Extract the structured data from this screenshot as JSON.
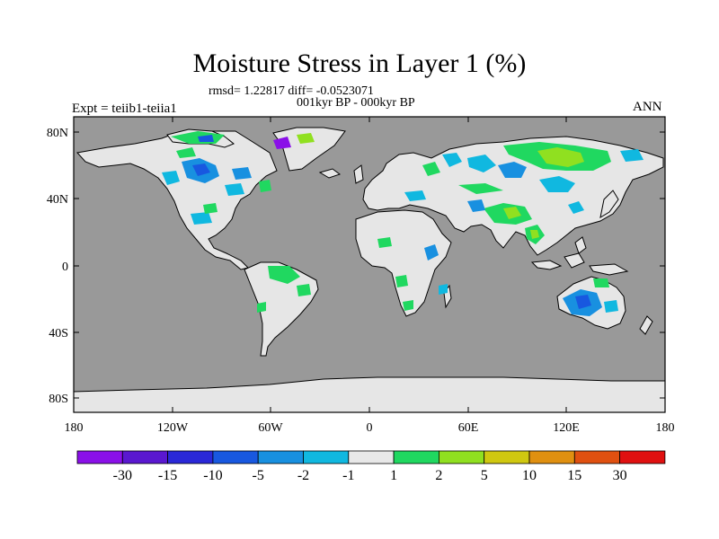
{
  "title": "Moisture Stress in Layer 1 (%)",
  "stats": "rmsd= 1.22817 diff= -0.0523071",
  "period": "001kyr BP - 000kyr BP",
  "experiment": "Expt = teiib1-teiia1",
  "season": "ANN",
  "lat_labels": [
    "80N",
    "40N",
    "0",
    "40S",
    "80S"
  ],
  "lon_labels": [
    "180",
    "120W",
    "60W",
    "0",
    "60E",
    "120E",
    "180"
  ],
  "colorbar": {
    "labels": [
      "-30",
      "-15",
      "-10",
      "-5",
      "-2",
      "-1",
      "1",
      "2",
      "5",
      "10",
      "15",
      "30"
    ],
    "colors": [
      "#8a10e8",
      "#5a18d0",
      "#2a28d8",
      "#1858e0",
      "#1890e0",
      "#10b8e0",
      "#e8e8e8",
      "#20d860",
      "#90e020",
      "#d0c810",
      "#e09010",
      "#e05010",
      "#e01010"
    ]
  },
  "colors": {
    "ocean": "#999999",
    "land": "#e6e6e6"
  }
}
